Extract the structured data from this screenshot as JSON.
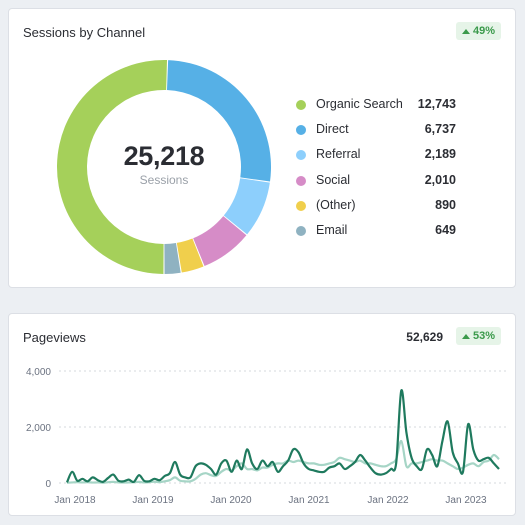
{
  "sessions_card": {
    "title": "Sessions by Channel",
    "badge": "49%",
    "total": "25,218",
    "total_label": "Sessions"
  },
  "pageviews_card": {
    "title": "Pageviews",
    "total": "52,629",
    "badge": "53%"
  },
  "colors": {
    "organic": "#a5d05a",
    "direct": "#56b0e6",
    "referral": "#8dcffc",
    "social": "#d68cc7",
    "other": "#f0cf4c",
    "email": "#8fb2c1",
    "badge_green": "#3b9a4b",
    "line_current": "#1f7a5e",
    "line_previous": "#a6d5c6"
  },
  "chart_data": [
    {
      "type": "pie",
      "series": [
        {
          "values": [
            12743,
            6737,
            2189,
            2010,
            890,
            649
          ]
        }
      ],
      "categories": [
        "Organic Search",
        "Direct",
        "Referral",
        "Social",
        "(Other)",
        "Email"
      ],
      "legend_labels": [
        {
          "label": "Organic Search",
          "value": "12,743",
          "color": "#a5d05a"
        },
        {
          "label": "Direct",
          "value": "6,737",
          "color": "#56b0e6"
        },
        {
          "label": "Referral",
          "value": "2,189",
          "color": "#8dcffc"
        },
        {
          "label": "Social",
          "value": "2,010",
          "color": "#d68cc7"
        },
        {
          "label": "(Other)",
          "value": "890",
          "color": "#f0cf4c"
        },
        {
          "label": "Email",
          "value": "649",
          "color": "#8fb2c1"
        }
      ],
      "legend": "right"
    },
    {
      "type": "line",
      "ylim": [
        0,
        4000
      ],
      "yticks": [
        "0",
        "2,000",
        "4,000"
      ],
      "xticks": [
        "Jan 2018",
        "Jan 2019",
        "Jan 2020",
        "Jan 2021",
        "Jan 2022",
        "Jan 2023"
      ],
      "x_range": [
        "Jan 2018",
        "Jul 2023"
      ],
      "grid": true,
      "series": [
        {
          "values": [
            20,
            400,
            80,
            150,
            60,
            200,
            100,
            40,
            180,
            300,
            80,
            60,
            120,
            40,
            280,
            80,
            60,
            150,
            100,
            250,
            350,
            750,
            300,
            200,
            200,
            600,
            700,
            650,
            500,
            300,
            700,
            800,
            400,
            800,
            500,
            1200,
            700,
            500,
            800,
            600,
            750,
            400,
            600,
            800,
            1200,
            1100,
            700,
            500,
            450,
            400,
            400,
            550,
            600,
            700,
            500,
            600,
            750,
            1000,
            800,
            550,
            350,
            300,
            350,
            500,
            700,
            3300,
            1800,
            900,
            600,
            500,
            1200,
            1000,
            600,
            1500,
            2200,
            1100,
            700,
            400,
            2100,
            1200,
            800,
            850,
            900,
            700,
            500
          ]
        },
        {
          "values": [
            10,
            20,
            30,
            20,
            30,
            15,
            20,
            10,
            30,
            40,
            20,
            15,
            20,
            30,
            40,
            20,
            30,
            50,
            30,
            60,
            100,
            200,
            80,
            60,
            60,
            150,
            300,
            350,
            280,
            250,
            400,
            500,
            450,
            600,
            700,
            500,
            500,
            450,
            550,
            550,
            650,
            700,
            700,
            800,
            750,
            800,
            750,
            700,
            700,
            650,
            650,
            700,
            750,
            900,
            850,
            800,
            750,
            800,
            700,
            700,
            650,
            600,
            600,
            700,
            850,
            1500,
            600,
            700,
            700,
            750,
            800,
            850,
            800,
            800,
            700,
            600,
            500,
            550,
            650,
            700,
            600,
            750,
            800,
            1000,
            850
          ]
        }
      ]
    }
  ]
}
